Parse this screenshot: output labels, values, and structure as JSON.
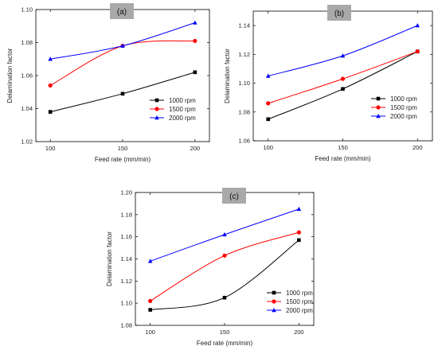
{
  "figure": {
    "panel_tag_color": "#a9a9a9",
    "series_colors": {
      "1000 rpm": "#000000",
      "1500 rpm": "#ff0000",
      "2000 rpm": "#0000ff"
    },
    "series_markers": {
      "1000 rpm": "square",
      "1500 rpm": "circle",
      "2000 rpm": "triangle"
    }
  },
  "chart_data": [
    {
      "type": "line",
      "panel_label": "(a)",
      "xlabel": "Feed rate (mm/min)",
      "ylabel": "Delamination factor",
      "x": [
        100,
        150,
        200
      ],
      "xlim": [
        90,
        210
      ],
      "ylim": [
        1.02,
        1.1
      ],
      "xticks": [
        "100",
        "150",
        "200"
      ],
      "yticks": [
        "1.02",
        "1.04",
        "1.06",
        "1.08",
        "1.10"
      ],
      "legend_position": "lower-right",
      "grid": false,
      "series": [
        {
          "name": "1000 rpm",
          "values": [
            1.038,
            1.049,
            1.062
          ]
        },
        {
          "name": "1500 rpm",
          "values": [
            1.054,
            1.078,
            1.081
          ]
        },
        {
          "name": "2000 rpm",
          "values": [
            1.07,
            1.078,
            1.092
          ]
        }
      ]
    },
    {
      "type": "line",
      "panel_label": "(b)",
      "xlabel": "Feed rate (mm/min)",
      "ylabel": "Delamination factor",
      "x": [
        100,
        150,
        200
      ],
      "xlim": [
        90,
        210
      ],
      "ylim": [
        1.06,
        1.15
      ],
      "xticks": [
        "100",
        "150",
        "200"
      ],
      "yticks": [
        "1.06",
        "1.08",
        "1.10",
        "1.12",
        "1.14"
      ],
      "legend_position": "lower-right",
      "grid": false,
      "series": [
        {
          "name": "1000 rpm",
          "values": [
            1.075,
            1.096,
            1.122
          ]
        },
        {
          "name": "1500 rpm",
          "values": [
            1.086,
            1.103,
            1.122
          ]
        },
        {
          "name": "2000 rpm",
          "values": [
            1.105,
            1.119,
            1.14
          ]
        }
      ]
    },
    {
      "type": "line",
      "panel_label": "(c)",
      "xlabel": "Feed rate (mm/min)",
      "ylabel": "Delamination factor",
      "x": [
        100,
        150,
        200
      ],
      "xlim": [
        90,
        210
      ],
      "ylim": [
        1.08,
        1.2
      ],
      "xticks": [
        "100",
        "150",
        "200"
      ],
      "yticks": [
        "1.08",
        "1.10",
        "1.12",
        "1.14",
        "1.16",
        "1.18",
        "1.20"
      ],
      "legend_position": "lower-right",
      "grid": false,
      "series": [
        {
          "name": "1000 rpm",
          "values": [
            1.094,
            1.105,
            1.157
          ]
        },
        {
          "name": "1500 rpm",
          "values": [
            1.102,
            1.143,
            1.164
          ]
        },
        {
          "name": "2000 rpm",
          "values": [
            1.138,
            1.162,
            1.185
          ]
        }
      ]
    }
  ]
}
